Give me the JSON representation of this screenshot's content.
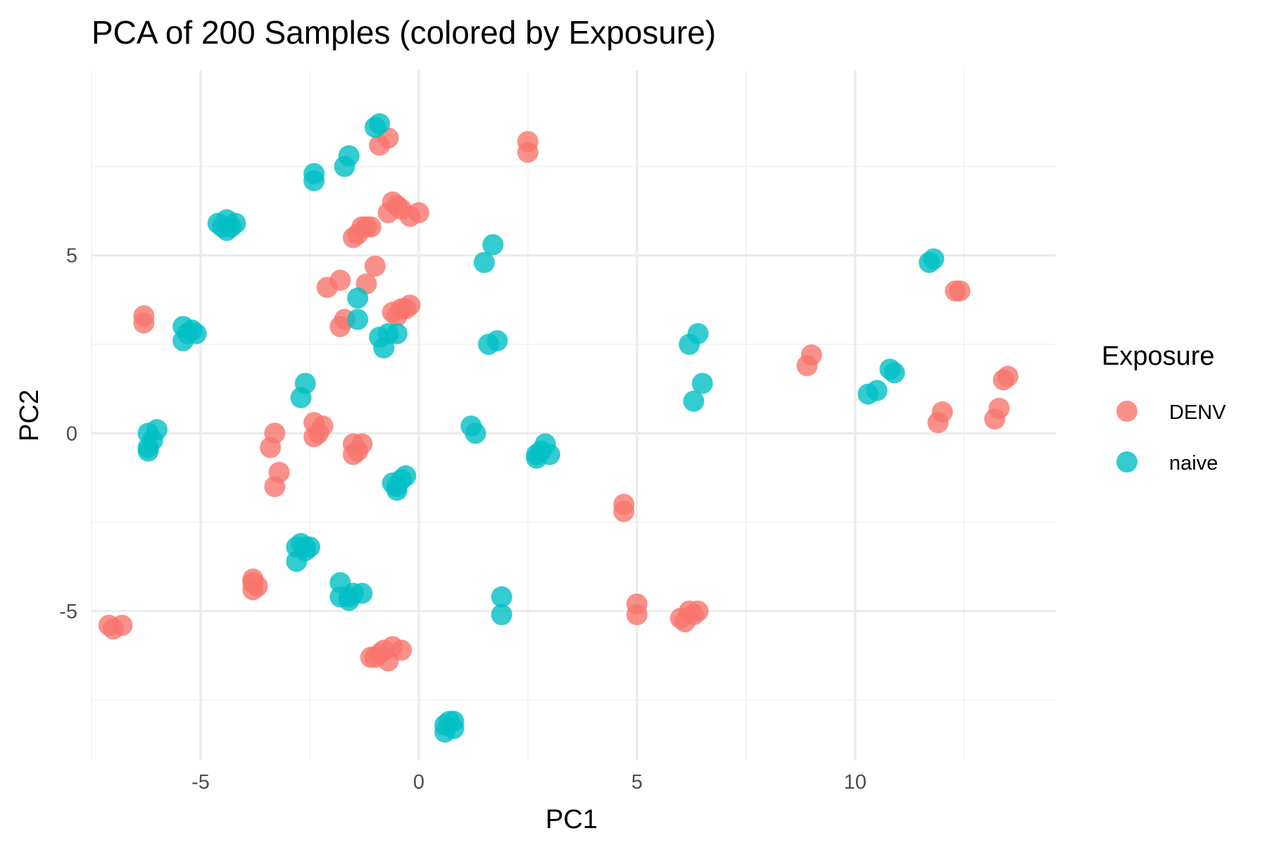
{
  "chart_data": {
    "type": "scatter",
    "title": "PCA of 200 Samples (colored by Exposure)",
    "xlabel": "PC1",
    "ylabel": "PC2",
    "xlim": [
      -7.5,
      14.6
    ],
    "ylim": [
      -9.2,
      10.2
    ],
    "x_ticks": [
      -5,
      0,
      5,
      10
    ],
    "x_tick_labels": [
      "-5",
      "0",
      "5",
      "10"
    ],
    "y_ticks": [
      -5,
      0,
      5
    ],
    "y_tick_labels": [
      "-5",
      "0",
      "5"
    ],
    "grid": true,
    "legend": {
      "title": "Exposure",
      "position": "right"
    },
    "series": [
      {
        "name": "DENV",
        "color": "#F8766D",
        "points": [
          [
            -0.9,
            8.1
          ],
          [
            -0.7,
            8.3
          ],
          [
            2.5,
            8.2
          ],
          [
            2.5,
            7.9
          ],
          [
            -0.6,
            6.5
          ],
          [
            -0.5,
            6.4
          ],
          [
            -0.4,
            6.3
          ],
          [
            -0.7,
            6.2
          ],
          [
            -0.2,
            6.1
          ],
          [
            0.0,
            6.2
          ],
          [
            -1.3,
            5.8
          ],
          [
            -1.2,
            5.8
          ],
          [
            -1.4,
            5.6
          ],
          [
            -1.5,
            5.5
          ],
          [
            -1.1,
            5.8
          ],
          [
            -1.0,
            4.7
          ],
          [
            -1.2,
            4.2
          ],
          [
            -1.8,
            4.3
          ],
          [
            -2.1,
            4.1
          ],
          [
            -0.6,
            3.4
          ],
          [
            -0.4,
            3.5
          ],
          [
            -0.3,
            3.5
          ],
          [
            -0.5,
            3.3
          ],
          [
            -0.2,
            3.6
          ],
          [
            -1.8,
            3.0
          ],
          [
            -1.7,
            3.2
          ],
          [
            -6.3,
            3.1
          ],
          [
            -6.3,
            3.3
          ],
          [
            -2.4,
            0.3
          ],
          [
            -2.2,
            0.2
          ],
          [
            -2.3,
            0.0
          ],
          [
            -2.4,
            -0.1
          ],
          [
            -3.3,
            0.0
          ],
          [
            -3.4,
            -0.4
          ],
          [
            -3.2,
            -1.1
          ],
          [
            -3.3,
            -1.5
          ],
          [
            -1.5,
            -0.3
          ],
          [
            -1.4,
            -0.5
          ],
          [
            -1.3,
            -0.3
          ],
          [
            -1.5,
            -0.6
          ],
          [
            -3.8,
            -4.1
          ],
          [
            -3.8,
            -4.2
          ],
          [
            -3.7,
            -4.3
          ],
          [
            -3.8,
            -4.4
          ],
          [
            -7.0,
            -5.5
          ],
          [
            -6.8,
            -5.4
          ],
          [
            -7.1,
            -5.4
          ],
          [
            -1.1,
            -6.3
          ],
          [
            -0.9,
            -6.2
          ],
          [
            -0.8,
            -6.1
          ],
          [
            -0.6,
            -6.0
          ],
          [
            -0.4,
            -6.1
          ],
          [
            -0.7,
            -6.4
          ],
          [
            -1.0,
            -6.3
          ],
          [
            4.7,
            -2.0
          ],
          [
            4.7,
            -2.2
          ],
          [
            5.0,
            -4.8
          ],
          [
            5.0,
            -5.1
          ],
          [
            6.0,
            -5.2
          ],
          [
            6.2,
            -5.0
          ],
          [
            6.3,
            -5.1
          ],
          [
            6.4,
            -5.0
          ],
          [
            6.1,
            -5.3
          ],
          [
            8.9,
            1.9
          ],
          [
            9.0,
            2.2
          ],
          [
            12.3,
            4.0
          ],
          [
            12.4,
            4.0
          ],
          [
            13.4,
            1.5
          ],
          [
            13.5,
            1.6
          ],
          [
            11.9,
            0.3
          ],
          [
            12.0,
            0.6
          ],
          [
            13.2,
            0.4
          ],
          [
            13.3,
            0.7
          ]
        ]
      },
      {
        "name": "naive",
        "color": "#00BFC4",
        "points": [
          [
            -0.9,
            8.7
          ],
          [
            -1.0,
            8.6
          ],
          [
            -1.6,
            7.8
          ],
          [
            -1.7,
            7.5
          ],
          [
            -2.4,
            7.3
          ],
          [
            -2.4,
            7.1
          ],
          [
            -4.4,
            6.0
          ],
          [
            -4.5,
            5.8
          ],
          [
            -4.3,
            5.8
          ],
          [
            -4.2,
            5.9
          ],
          [
            -4.4,
            5.7
          ],
          [
            -4.6,
            5.9
          ],
          [
            1.7,
            5.3
          ],
          [
            1.5,
            4.8
          ],
          [
            11.7,
            4.8
          ],
          [
            11.8,
            4.9
          ],
          [
            -1.4,
            3.8
          ],
          [
            -1.4,
            3.2
          ],
          [
            -0.9,
            2.7
          ],
          [
            -0.7,
            2.8
          ],
          [
            -0.8,
            2.4
          ],
          [
            -0.5,
            2.8
          ],
          [
            1.6,
            2.5
          ],
          [
            1.8,
            2.6
          ],
          [
            -5.4,
            3.0
          ],
          [
            -5.3,
            2.8
          ],
          [
            -5.1,
            2.8
          ],
          [
            -5.4,
            2.6
          ],
          [
            -5.2,
            2.9
          ],
          [
            6.2,
            2.5
          ],
          [
            6.4,
            2.8
          ],
          [
            -2.6,
            1.4
          ],
          [
            -2.7,
            1.0
          ],
          [
            6.3,
            0.9
          ],
          [
            6.5,
            1.4
          ],
          [
            10.8,
            1.8
          ],
          [
            10.9,
            1.7
          ],
          [
            10.3,
            1.1
          ],
          [
            10.5,
            1.2
          ],
          [
            -6.2,
            0.0
          ],
          [
            -6.1,
            -0.2
          ],
          [
            -6.0,
            0.1
          ],
          [
            -6.2,
            -0.4
          ],
          [
            -6.2,
            -0.5
          ],
          [
            1.2,
            0.2
          ],
          [
            1.3,
            0.0
          ],
          [
            2.9,
            -0.3
          ],
          [
            2.8,
            -0.5
          ],
          [
            2.7,
            -0.6
          ],
          [
            3.0,
            -0.6
          ],
          [
            2.7,
            -0.7
          ],
          [
            -0.6,
            -1.4
          ],
          [
            -0.5,
            -1.5
          ],
          [
            -0.3,
            -1.2
          ],
          [
            -0.5,
            -1.6
          ],
          [
            -0.4,
            -1.3
          ],
          [
            -2.7,
            -3.1
          ],
          [
            -2.6,
            -3.2
          ],
          [
            -2.5,
            -3.2
          ],
          [
            -2.8,
            -3.2
          ],
          [
            -2.6,
            -3.3
          ],
          [
            -2.8,
            -3.6
          ],
          [
            -1.8,
            -4.2
          ],
          [
            -1.8,
            -4.6
          ],
          [
            -1.6,
            -4.6
          ],
          [
            -1.5,
            -4.5
          ],
          [
            -1.3,
            -4.5
          ],
          [
            -1.6,
            -4.7
          ],
          [
            1.9,
            -4.6
          ],
          [
            1.9,
            -5.1
          ],
          [
            0.6,
            -8.2
          ],
          [
            0.7,
            -8.1
          ],
          [
            0.8,
            -8.1
          ],
          [
            0.8,
            -8.3
          ],
          [
            0.6,
            -8.4
          ]
        ]
      }
    ]
  }
}
